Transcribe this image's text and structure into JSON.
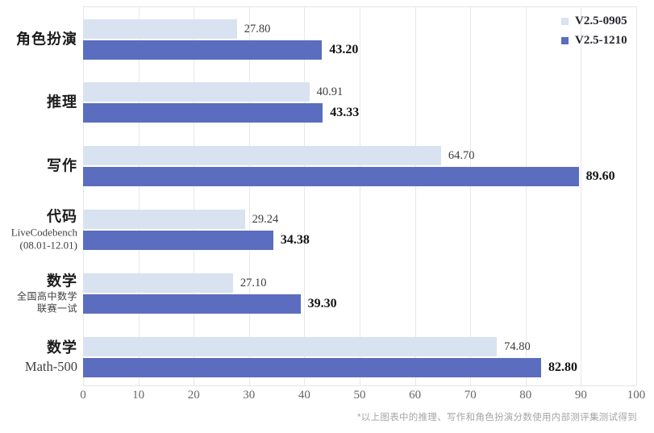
{
  "chart_data": {
    "type": "bar",
    "orientation": "horizontal",
    "title": "",
    "xlabel": "",
    "ylabel": "",
    "xlim": [
      0,
      100
    ],
    "x_ticks": [
      0,
      10,
      20,
      30,
      40,
      50,
      60,
      70,
      80,
      90,
      100
    ],
    "grid": "vertical",
    "legend_position": "top-right",
    "categories": [
      {
        "label": "角色扮演",
        "sublabel_lines": [],
        "sub_style": ""
      },
      {
        "label": "推理",
        "sublabel_lines": [],
        "sub_style": ""
      },
      {
        "label": "写作",
        "sublabel_lines": [],
        "sub_style": ""
      },
      {
        "label": "代码",
        "sublabel_lines": [
          "LiveCodebench",
          "(08.01-12.01)"
        ],
        "sub_style": "latin-small"
      },
      {
        "label": "数学",
        "sublabel_lines": [
          "全国高中数学",
          "联赛一试"
        ],
        "sub_style": "cjk-small"
      },
      {
        "label": "数学",
        "sublabel_lines": [
          "Math-500"
        ],
        "sub_style": "latin-large"
      }
    ],
    "series": [
      {
        "name": "V2.5-0905",
        "color": "#d9e2f1",
        "values": [
          27.8,
          40.91,
          64.7,
          29.24,
          27.1,
          74.8
        ]
      },
      {
        "name": "V2.5-1210",
        "color": "#5b6dbf",
        "values": [
          43.2,
          43.33,
          89.6,
          34.38,
          39.3,
          82.8
        ]
      }
    ],
    "value_label_decimals": 2
  },
  "footnote": "*以上图表中的推理、写作和角色扮演分数使用内部测评集测试得到"
}
